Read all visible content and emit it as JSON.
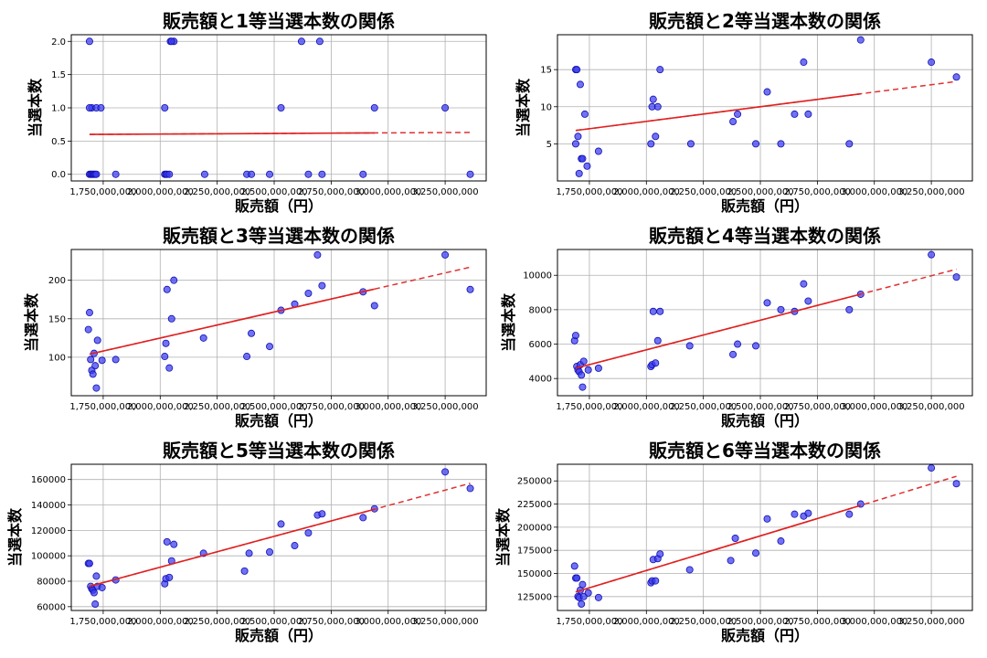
{
  "chart_data": [
    {
      "type": "scatter",
      "title": "販売額と1等当選本数の関係",
      "xlabel": "販売額（円）",
      "ylabel": "当選本数",
      "xlim": [
        1610000000,
        3430000000
      ],
      "ylim": [
        -0.1,
        2.1
      ],
      "yticks": [
        0.0,
        0.5,
        1.0,
        1.5,
        2.0
      ],
      "ytick_labels": [
        "0.0",
        "0.5",
        "1.0",
        "1.5",
        "2.0"
      ],
      "x": [
        1690000000,
        1695000000,
        1700000000,
        1705000000,
        1710000000,
        1715000000,
        1720000000,
        1690000000,
        1700000000,
        1720000000,
        1740000000,
        1690000000,
        1805000000,
        2020000000,
        2025000000,
        2030000000,
        2040000000,
        2020000000,
        2045000000,
        2060000000,
        2050000000,
        2195000000,
        2380000000,
        2400000000,
        2480000000,
        2530000000,
        2620000000,
        2650000000,
        2700000000,
        2710000000,
        2890000000,
        2940000000,
        3250000000,
        3360000000
      ],
      "y": [
        0,
        0,
        0,
        0,
        0,
        0,
        0,
        2,
        1,
        1,
        1,
        1,
        0,
        0,
        0,
        0,
        0,
        1,
        2,
        2,
        2,
        0,
        0,
        0,
        0,
        1,
        2,
        0,
        2,
        0,
        0,
        1,
        1,
        0
      ],
      "fit": {
        "start": [
          1690000000,
          0.6
        ],
        "end": [
          3360000000,
          0.63
        ],
        "solid_until": 2940000000
      }
    },
    {
      "type": "scatter",
      "title": "販売額と2等当選本数の関係",
      "xlabel": "販売額（円）",
      "ylabel": "当選本数",
      "xlim": [
        1610000000,
        3430000000
      ],
      "ylim": [
        0.0,
        19.7
      ],
      "yticks": [
        5,
        10,
        15
      ],
      "ytick_labels": [
        "5",
        "10",
        "15"
      ],
      "x": [
        1690000000,
        1695000000,
        1700000000,
        1705000000,
        1710000000,
        1715000000,
        1720000000,
        1730000000,
        1690000000,
        1740000000,
        1790000000,
        2020000000,
        2025000000,
        2030000000,
        2040000000,
        2050000000,
        2060000000,
        2195000000,
        2380000000,
        2400000000,
        2480000000,
        2530000000,
        2590000000,
        2650000000,
        2690000000,
        2710000000,
        2890000000,
        2940000000,
        3250000000,
        3360000000
      ],
      "y": [
        15,
        15,
        6,
        1,
        13,
        3,
        3,
        9,
        5,
        2,
        4,
        5,
        10,
        11,
        6,
        10,
        15,
        5,
        8,
        9,
        5,
        12,
        5,
        9,
        16,
        9,
        5,
        19,
        16,
        14
      ],
      "fit": {
        "start": [
          1690000000,
          6.8
        ],
        "end": [
          3360000000,
          13.4
        ],
        "solid_until": 2940000000
      }
    },
    {
      "type": "scatter",
      "title": "販売額と3等当選本数の関係",
      "xlabel": "販売額（円）",
      "ylabel": "当選本数",
      "xlim": [
        1610000000,
        3430000000
      ],
      "ylim": [
        50,
        240
      ],
      "yticks": [
        100,
        150,
        200
      ],
      "ytick_labels": [
        "100",
        "150",
        "200"
      ],
      "x": [
        1685000000,
        1690000000,
        1695000000,
        1700000000,
        1705000000,
        1710000000,
        1715000000,
        1720000000,
        1725000000,
        1745000000,
        1805000000,
        2020000000,
        2025000000,
        2030000000,
        2040000000,
        2050000000,
        2060000000,
        2190000000,
        2380000000,
        2400000000,
        2480000000,
        2530000000,
        2590000000,
        2650000000,
        2690000000,
        2710000000,
        2890000000,
        2940000000,
        3250000000,
        3360000000
      ],
      "y": [
        136,
        158,
        97,
        83,
        78,
        105,
        89,
        60,
        122,
        96,
        97,
        101,
        118,
        188,
        86,
        150,
        200,
        125,
        101,
        131,
        114,
        161,
        169,
        183,
        233,
        193,
        185,
        167,
        233,
        188
      ],
      "fit": {
        "start": [
          1690000000,
          104
        ],
        "end": [
          3360000000,
          217
        ],
        "solid_until": 2940000000
      }
    },
    {
      "type": "scatter",
      "title": "販売額と4等当選本数の関係",
      "xlabel": "販売額（円）",
      "ylabel": "当選本数",
      "xlim": [
        1610000000,
        3430000000
      ],
      "ylim": [
        3000,
        11500
      ],
      "yticks": [
        4000,
        6000,
        8000,
        10000
      ],
      "ytick_labels": [
        "4000",
        "6000",
        "8000",
        "10000"
      ],
      "x": [
        1685000000,
        1690000000,
        1695000000,
        1700000000,
        1705000000,
        1710000000,
        1715000000,
        1720000000,
        1725000000,
        1745000000,
        1790000000,
        2020000000,
        2025000000,
        2030000000,
        2040000000,
        2050000000,
        2060000000,
        2190000000,
        2380000000,
        2400000000,
        2480000000,
        2530000000,
        2590000000,
        2650000000,
        2690000000,
        2710000000,
        2890000000,
        2940000000,
        3250000000,
        3360000000
      ],
      "y": [
        6200,
        6500,
        4700,
        4500,
        4400,
        4800,
        4200,
        3500,
        5000,
        4500,
        4600,
        4700,
        4800,
        7900,
        4900,
        6200,
        7900,
        5900,
        5400,
        6000,
        5900,
        8400,
        8000,
        7900,
        9500,
        8500,
        8000,
        8900,
        11200,
        9900
      ],
      "fit": {
        "start": [
          1690000000,
          4600
        ],
        "end": [
          3360000000,
          10350
        ],
        "solid_until": 2940000000
      }
    },
    {
      "type": "scatter",
      "title": "販売額と5等当選本数の関係",
      "xlabel": "販売額（円）",
      "ylabel": "当選本数",
      "xlim": [
        1610000000,
        3430000000
      ],
      "ylim": [
        57000,
        172000
      ],
      "yticks": [
        60000,
        80000,
        100000,
        120000,
        140000,
        160000
      ],
      "ytick_labels": [
        "60000",
        "80000",
        "100000",
        "120000",
        "140000",
        "160000"
      ],
      "x": [
        1685000000,
        1690000000,
        1695000000,
        1700000000,
        1705000000,
        1710000000,
        1715000000,
        1720000000,
        1725000000,
        1745000000,
        1805000000,
        2020000000,
        2025000000,
        2030000000,
        2040000000,
        2050000000,
        2060000000,
        2190000000,
        2370000000,
        2390000000,
        2480000000,
        2530000000,
        2590000000,
        2650000000,
        2690000000,
        2710000000,
        2890000000,
        2940000000,
        3250000000,
        3360000000
      ],
      "y": [
        94000,
        94000,
        76000,
        74000,
        73000,
        71000,
        62000,
        84000,
        76000,
        75000,
        81000,
        78000,
        82000,
        111000,
        83000,
        96000,
        109000,
        102000,
        88000,
        102000,
        103000,
        125000,
        108000,
        118000,
        132000,
        133000,
        130000,
        137000,
        166000,
        153000
      ],
      "fit": {
        "start": [
          1690000000,
          76000
        ],
        "end": [
          3360000000,
          157000
        ],
        "solid_until": 2940000000
      }
    },
    {
      "type": "scatter",
      "title": "販売額と6等当選本数の関係",
      "xlabel": "販売額（円）",
      "ylabel": "当選本数",
      "xlim": [
        1610000000,
        3430000000
      ],
      "ylim": [
        110000,
        268000
      ],
      "yticks": [
        125000,
        150000,
        175000,
        200000,
        225000,
        250000
      ],
      "ytick_labels": [
        "125000",
        "150000",
        "175000",
        "200000",
        "225000",
        "250000"
      ],
      "x": [
        1685000000,
        1690000000,
        1695000000,
        1700000000,
        1705000000,
        1710000000,
        1715000000,
        1720000000,
        1725000000,
        1745000000,
        1790000000,
        2020000000,
        2025000000,
        2030000000,
        2040000000,
        2050000000,
        2060000000,
        2190000000,
        2370000000,
        2390000000,
        2480000000,
        2530000000,
        2590000000,
        2650000000,
        2690000000,
        2710000000,
        2890000000,
        2940000000,
        3250000000,
        3360000000
      ],
      "y": [
        158000,
        145000,
        145000,
        125000,
        124000,
        132000,
        117000,
        138000,
        125000,
        129000,
        124000,
        140000,
        142000,
        165000,
        142000,
        166000,
        171000,
        154000,
        164000,
        188000,
        172000,
        209000,
        185000,
        214000,
        212000,
        215000,
        214000,
        225000,
        264000,
        247000
      ],
      "fit": {
        "start": [
          1690000000,
          130000
        ],
        "end": [
          3360000000,
          255000
        ],
        "solid_until": 2940000000
      }
    }
  ],
  "x_axis": {
    "ticks": [
      1750000000,
      2000000000,
      2250000000,
      2500000000,
      2750000000,
      3000000000,
      3250000000
    ],
    "tick_labels": [
      "1,750,000,000",
      "2,000,000,000",
      "2,250,000,000",
      "2,500,000,000",
      "2,750,000,000",
      "3,000,000,000",
      "3,250,000,000"
    ]
  },
  "colors": {
    "point_fill": "#3a3af0",
    "point_edge": "#1010b0",
    "fit_line": "#e02020",
    "grid": "#b0b0b0"
  }
}
